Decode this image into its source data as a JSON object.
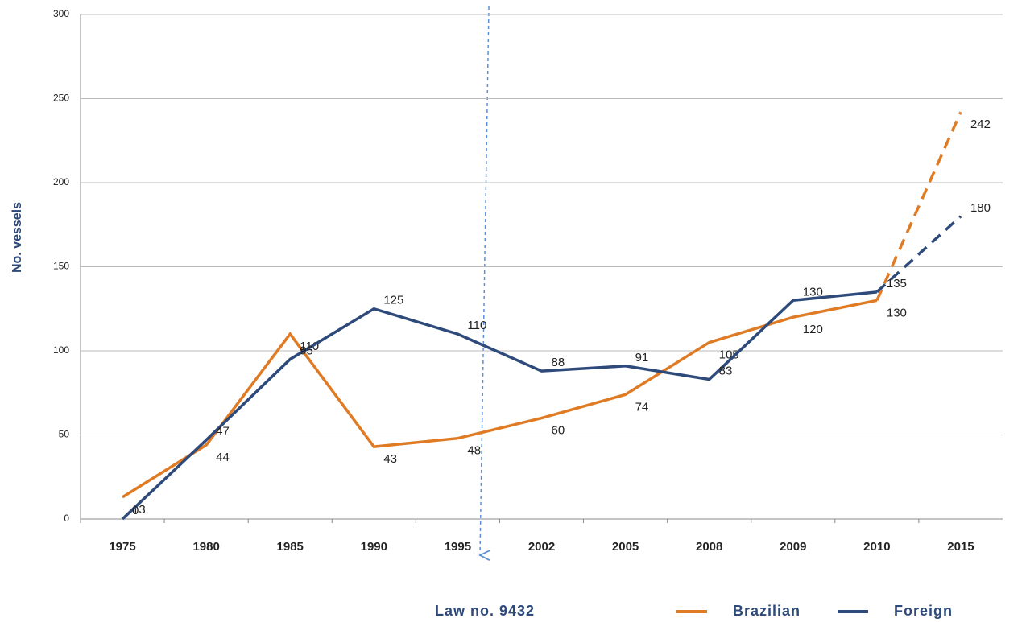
{
  "chart_data": {
    "type": "line",
    "y_label": "No. vessels",
    "annotation": "Law no. 9432",
    "categories": [
      "1975",
      "1980",
      "1985",
      "1990",
      "1995",
      "2002",
      "2005",
      "2008",
      "2009",
      "2010",
      "2015"
    ],
    "series": [
      {
        "name": "Brazilian",
        "color": "#e07b25",
        "values": [
          13,
          44,
          110,
          43,
          48,
          60,
          74,
          105,
          120,
          130,
          242
        ]
      },
      {
        "name": "Foreign",
        "color": "#2e4a7a",
        "values": [
          0,
          47,
          95,
          125,
          110,
          88,
          91,
          83,
          130,
          135,
          180
        ]
      }
    ],
    "ylim": [
      0,
      300
    ],
    "yticks": [
      0,
      50,
      100,
      150,
      200,
      250,
      300
    ],
    "grid": true
  }
}
